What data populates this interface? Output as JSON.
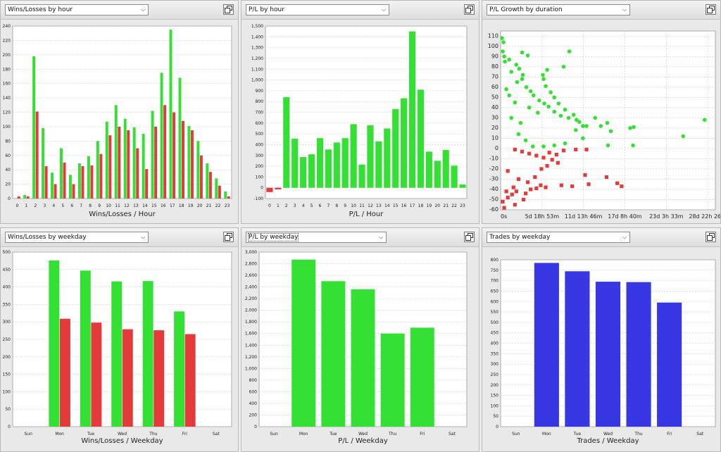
{
  "colors": {
    "win": "#33e033",
    "loss": "#e33a3a",
    "trades": "#3737e3",
    "grid": "#c9c9c9"
  },
  "panels": [
    {
      "selector_label": "Wins/Losses by hour"
    },
    {
      "selector_label": "P/L by hour"
    },
    {
      "selector_label": "P/L Growth by duration"
    },
    {
      "selector_label": "Wins/Losses by weekday"
    },
    {
      "selector_label": "P/L by weekday"
    },
    {
      "selector_label": "Trades by weekday"
    }
  ],
  "chart_data": [
    {
      "type": "bar",
      "xlabel": "Wins/Losses / Hour",
      "ylabel": "",
      "ylim": [
        0,
        240
      ],
      "yticks": [
        0,
        20,
        40,
        60,
        80,
        100,
        120,
        140,
        160,
        180,
        200,
        220,
        240
      ],
      "categories": [
        "0",
        "1",
        "2",
        "3",
        "4",
        "5",
        "6",
        "7",
        "8",
        "9",
        "10",
        "11",
        "12",
        "13",
        "14",
        "15",
        "16",
        "17",
        "18",
        "19",
        "20",
        "21",
        "22",
        "23"
      ],
      "series": [
        {
          "values": [
            0,
            5,
            198,
            98,
            36,
            70,
            33,
            49,
            59,
            80,
            107,
            130,
            111,
            99,
            90,
            122,
            175,
            235,
            168,
            101,
            80,
            49,
            28,
            10
          ]
        },
        {
          "values": [
            3,
            3,
            121,
            45,
            20,
            50,
            20,
            45,
            46,
            62,
            88,
            100,
            95,
            70,
            41,
            100,
            130,
            120,
            108,
            95,
            60,
            37,
            18,
            3
          ]
        }
      ]
    },
    {
      "type": "bar",
      "xlabel": "P/L / Hour",
      "ylabel": "",
      "ylim": [
        -100,
        1500
      ],
      "yticks": [
        -100,
        0,
        100,
        200,
        300,
        400,
        500,
        600,
        700,
        800,
        900,
        1000,
        1100,
        1200,
        1300,
        1400,
        1500
      ],
      "ytick_labels": [
        "-100",
        "0",
        "100",
        "200",
        "300",
        "400",
        "500",
        "600",
        "700",
        "800",
        "900",
        "1,000",
        "1,100",
        "1,200",
        "1,300",
        "1,400",
        "1,500"
      ],
      "categories": [
        "0",
        "1",
        "2",
        "3",
        "4",
        "5",
        "6",
        "7",
        "8",
        "9",
        "10",
        "11",
        "12",
        "13",
        "14",
        "15",
        "16",
        "17",
        "18",
        "19",
        "20",
        "21",
        "22",
        "23"
      ],
      "values": [
        -40,
        -15,
        840,
        455,
        285,
        310,
        460,
        355,
        420,
        460,
        590,
        215,
        580,
        430,
        550,
        730,
        830,
        1450,
        910,
        335,
        250,
        350,
        205,
        30
      ]
    },
    {
      "type": "scatter",
      "xlabel": "",
      "ylabel": "",
      "ylim": [
        -60,
        115
      ],
      "yticks": [
        -60,
        -50,
        -40,
        -30,
        -20,
        -10,
        0,
        10,
        20,
        30,
        40,
        50,
        60,
        70,
        80,
        90,
        100,
        110
      ],
      "xticks": [
        "0s",
        "5d 18h 53m",
        "11d 13h 46m",
        "17d 8h 40m",
        "23d 3h 33m",
        "28d 22h 26m"
      ],
      "xlim_days": [
        0,
        30
      ],
      "series": [
        {
          "marker": "circle",
          "points": [
            [
              0.2,
              108
            ],
            [
              0.4,
              104
            ],
            [
              0.3,
              95
            ],
            [
              0.5,
              90
            ],
            [
              0.6,
              85
            ],
            [
              1.2,
              87
            ],
            [
              2.2,
              82
            ],
            [
              2.6,
              78
            ],
            [
              1.5,
              75
            ],
            [
              3.1,
              72
            ],
            [
              3.0,
              68
            ],
            [
              2.3,
              65
            ],
            [
              3.6,
              60
            ],
            [
              4.2,
              56
            ],
            [
              4.6,
              52
            ],
            [
              5.4,
              47
            ],
            [
              6.1,
              44
            ],
            [
              6.7,
              41
            ],
            [
              7.5,
              36
            ],
            [
              8.4,
              32
            ],
            [
              9.5,
              30
            ],
            [
              10.6,
              28
            ],
            [
              11.5,
              22
            ],
            [
              13.2,
              30
            ],
            [
              14.0,
              22
            ],
            [
              14.9,
              25
            ],
            [
              15.4,
              17
            ],
            [
              15.0,
              3
            ],
            [
              18.1,
              20
            ],
            [
              18.6,
              21
            ],
            [
              18.5,
              3
            ],
            [
              25.5,
              12
            ],
            [
              28.5,
              28
            ],
            [
              3.0,
              94
            ],
            [
              3.8,
              91
            ],
            [
              6.5,
              77
            ],
            [
              9.6,
              95
            ],
            [
              8.8,
              80
            ],
            [
              5.9,
              72
            ],
            [
              6.0,
              68
            ],
            [
              6.3,
              61
            ],
            [
              7.0,
              55
            ],
            [
              7.5,
              50
            ],
            [
              8.1,
              44
            ],
            [
              9.0,
              38
            ],
            [
              10.2,
              33
            ],
            [
              11.0,
              26
            ],
            [
              12.0,
              22
            ],
            [
              10.5,
              18
            ],
            [
              11.5,
              10
            ],
            [
              9.0,
              5
            ],
            [
              7.5,
              3
            ],
            [
              6.0,
              2
            ],
            [
              4.5,
              2
            ],
            [
              3.5,
              8
            ],
            [
              2.5,
              14
            ],
            [
              5.2,
              35
            ],
            [
              4.0,
              40
            ],
            [
              2.0,
              45
            ],
            [
              1.2,
              52
            ],
            [
              0.8,
              58
            ],
            [
              1.5,
              30
            ],
            [
              2.8,
              25
            ]
          ]
        },
        {
          "marker": "square",
          "points": [
            [
              0.5,
              -58
            ],
            [
              0.3,
              -52
            ],
            [
              1.0,
              -48
            ],
            [
              1.6,
              -45
            ],
            [
              2.2,
              -42
            ],
            [
              3.5,
              -44
            ],
            [
              4.2,
              -40
            ],
            [
              5.0,
              -39
            ],
            [
              5.6,
              -36
            ],
            [
              6.3,
              -38
            ],
            [
              8.5,
              -36
            ],
            [
              10.0,
              -37
            ],
            [
              12.3,
              -35
            ],
            [
              14.8,
              -28
            ],
            [
              16.3,
              -34
            ],
            [
              16.9,
              -37
            ],
            [
              11.8,
              -26
            ],
            [
              5.7,
              -20
            ],
            [
              6.5,
              -17
            ],
            [
              8.0,
              -14
            ],
            [
              7.2,
              -11
            ],
            [
              6.0,
              -9
            ],
            [
              5.0,
              -7
            ],
            [
              4.0,
              -5
            ],
            [
              3.0,
              -3
            ],
            [
              2.0,
              -1
            ],
            [
              1.0,
              -22
            ],
            [
              2.5,
              -30
            ],
            [
              3.8,
              -33
            ],
            [
              4.8,
              -28
            ],
            [
              1.8,
              -38
            ],
            [
              0.8,
              -42
            ],
            [
              3.2,
              -50
            ],
            [
              2.0,
              -55
            ],
            [
              6.8,
              -4
            ],
            [
              8.8,
              -2
            ],
            [
              10.5,
              -1
            ],
            [
              12.0,
              -1
            ],
            [
              7.8,
              -6
            ]
          ]
        }
      ]
    },
    {
      "type": "bar",
      "xlabel": "Wins/Losses / Weekday",
      "ylabel": "",
      "ylim": [
        0,
        500
      ],
      "yticks": [
        0,
        50,
        100,
        150,
        200,
        250,
        300,
        350,
        400,
        450,
        500
      ],
      "categories": [
        "Sun",
        "Mon",
        "Tue",
        "Wed",
        "Thu",
        "Fri",
        "Sat"
      ],
      "series": [
        {
          "values": [
            0,
            476,
            447,
            416,
            417,
            330,
            0
          ]
        },
        {
          "values": [
            0,
            309,
            298,
            279,
            276,
            265,
            0
          ]
        }
      ]
    },
    {
      "type": "bar",
      "xlabel": "P/L / Weekday",
      "ylabel": "",
      "ylim": [
        0,
        3000
      ],
      "yticks": [
        0,
        200,
        400,
        600,
        800,
        1000,
        1200,
        1400,
        1600,
        1800,
        2000,
        2200,
        2400,
        2600,
        2800,
        3000
      ],
      "ytick_labels": [
        "0",
        "200",
        "400",
        "600",
        "800",
        "1,000",
        "1,200",
        "1,400",
        "1,600",
        "1,800",
        "2,000",
        "2,200",
        "2,400",
        "2,600",
        "2,800",
        "3,000"
      ],
      "categories": [
        "Sun",
        "Mon",
        "Tue",
        "Wed",
        "Thu",
        "Fri",
        "Sat"
      ],
      "values": [
        0,
        2870,
        2500,
        2360,
        1600,
        1700,
        0
      ]
    },
    {
      "type": "bar",
      "xlabel": "Trades / Weekday",
      "ylabel": "",
      "ylim": [
        0,
        800
      ],
      "yticks": [
        0,
        50,
        100,
        150,
        200,
        250,
        300,
        350,
        400,
        450,
        500,
        550,
        600,
        650,
        700,
        750,
        800
      ],
      "categories": [
        "Sun",
        "Mon",
        "Tue",
        "Wed",
        "Thu",
        "Fri",
        "Sat"
      ],
      "values": [
        0,
        785,
        745,
        695,
        693,
        595,
        0
      ]
    }
  ]
}
